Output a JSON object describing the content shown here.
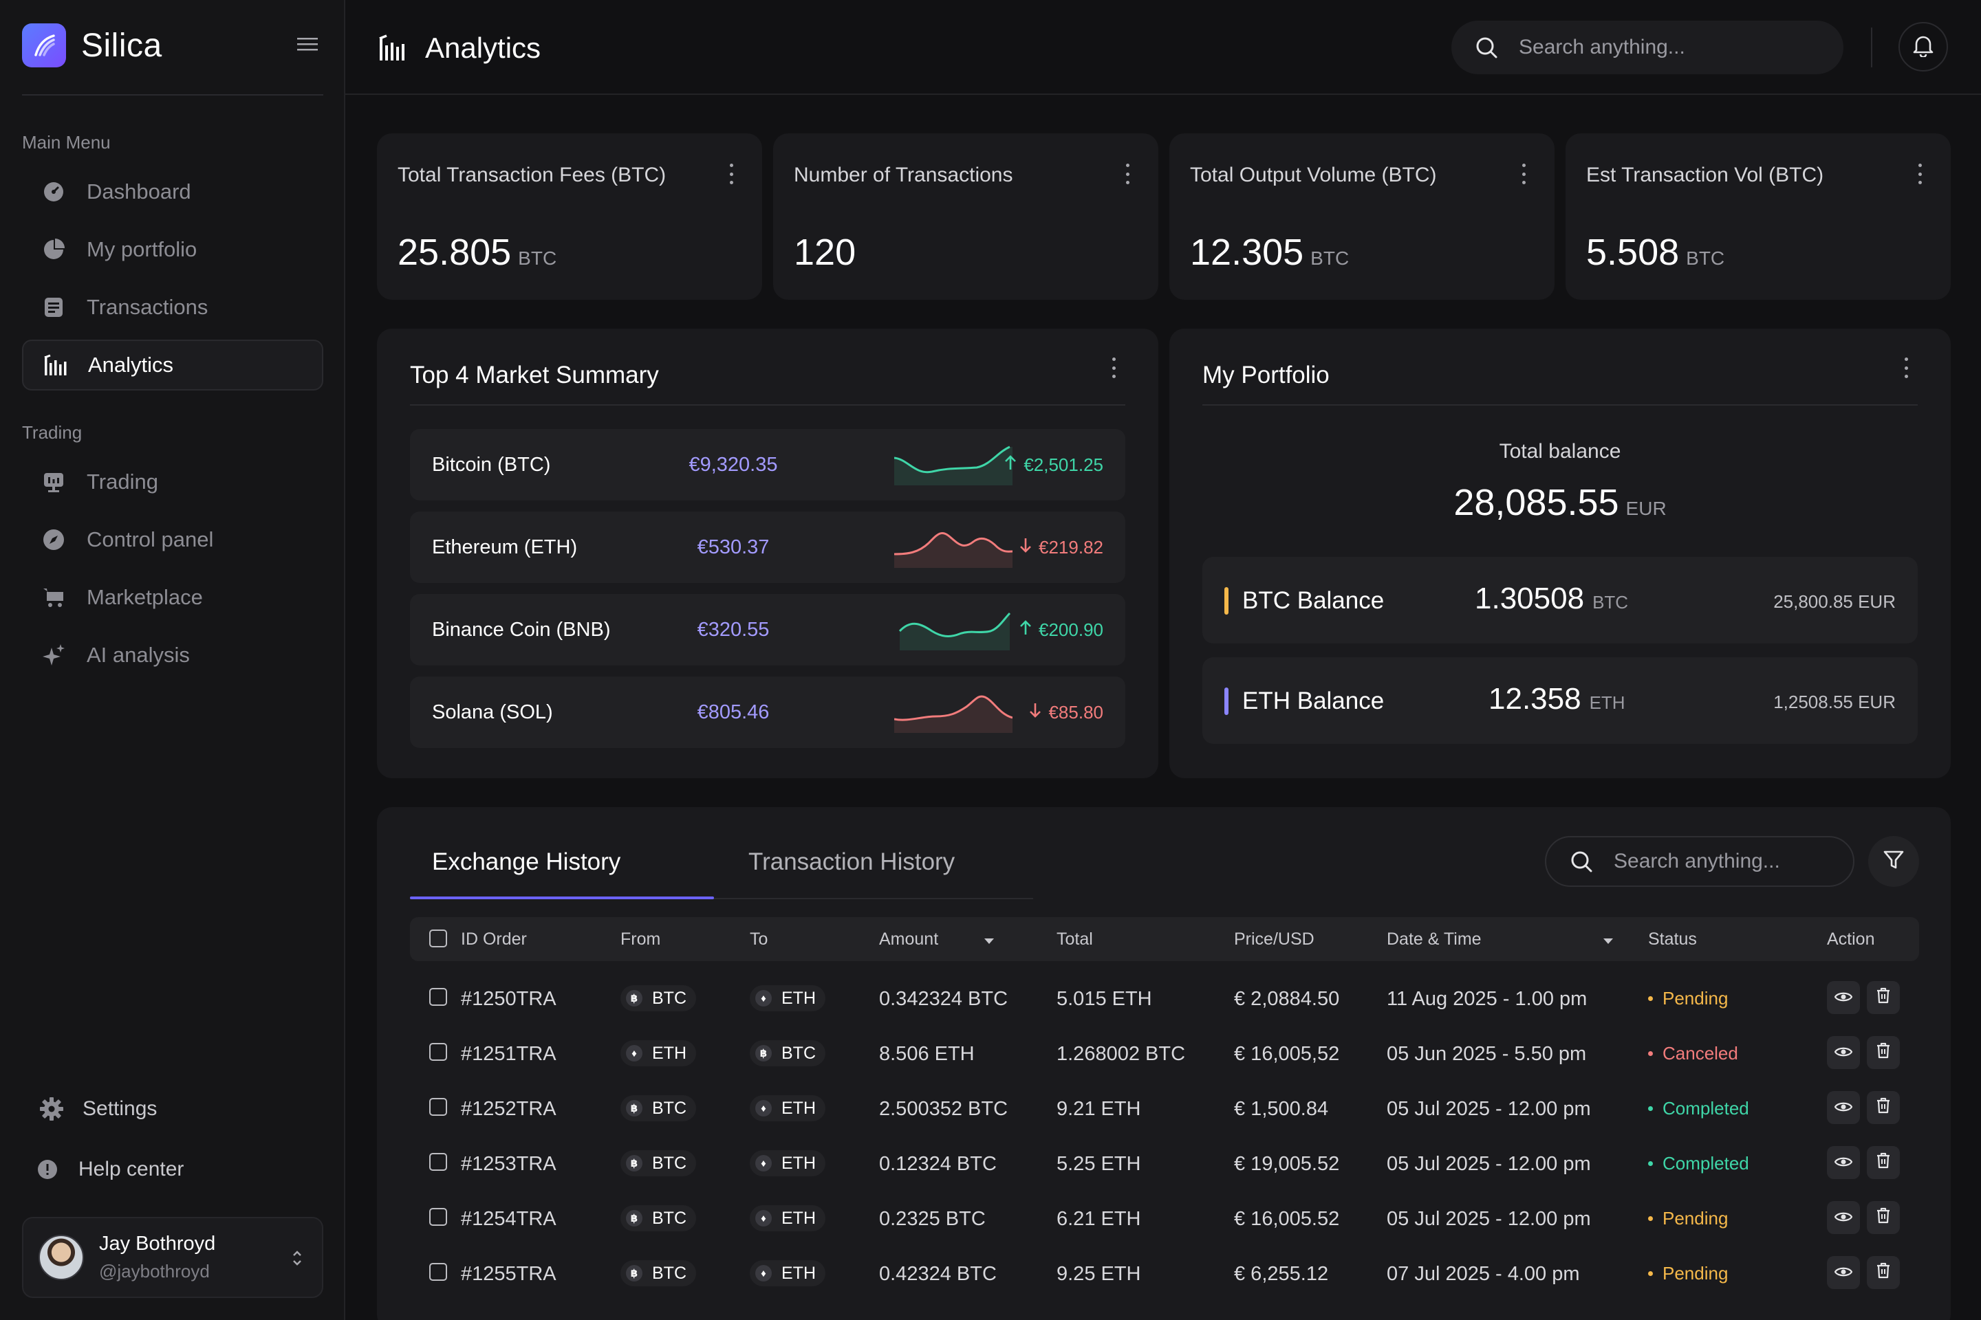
{
  "brand": {
    "name": "Silica"
  },
  "sidebar": {
    "main_menu_label": "Main Menu",
    "main_items": [
      {
        "label": "Dashboard",
        "icon": "dashboard-icon"
      },
      {
        "label": "My portfolio",
        "icon": "pie-chart-icon"
      },
      {
        "label": "Transactions",
        "icon": "receipt-icon"
      },
      {
        "label": "Analytics",
        "icon": "bar-chart-icon",
        "active": true
      }
    ],
    "trading_label": "Trading",
    "trading_items": [
      {
        "label": "Trading",
        "icon": "presentation-icon"
      },
      {
        "label": "Control panel",
        "icon": "compass-icon"
      },
      {
        "label": "Marketplace",
        "icon": "cart-icon"
      },
      {
        "label": "AI analysis",
        "icon": "sparkle-icon"
      }
    ],
    "settings_label": "Settings",
    "help_label": "Help center",
    "user": {
      "name": "Jay Bothroyd",
      "handle": "@jaybothroyd"
    }
  },
  "header": {
    "title": "Analytics",
    "search_placeholder": "Search anything..."
  },
  "stats": [
    {
      "title": "Total Transaction Fees (BTC)",
      "value": "25.805",
      "unit": "BTC"
    },
    {
      "title": "Number of Transactions",
      "value": "120",
      "unit": ""
    },
    {
      "title": "Total Output Volume (BTC)",
      "value": "12.305",
      "unit": "BTC"
    },
    {
      "title": "Est Transaction Vol (BTC)",
      "value": "5.508",
      "unit": "BTC"
    }
  ],
  "market": {
    "title": "Top 4 Market Summary",
    "rows": [
      {
        "name": "Bitcoin (BTC)",
        "price": "€9,320.35",
        "change": "€2,501.25",
        "direction": "up",
        "color": "#3fd6a8"
      },
      {
        "name": "Ethereum (ETH)",
        "price": "€530.37",
        "change": "€219.82",
        "direction": "down",
        "color": "#f27c7c"
      },
      {
        "name": "Binance Coin (BNB)",
        "price": "€320.55",
        "change": "€200.90",
        "direction": "up",
        "color": "#3fd6a8"
      },
      {
        "name": "Solana (SOL)",
        "price": "€805.46",
        "change": "€85.80",
        "direction": "down",
        "color": "#f27c7c"
      }
    ]
  },
  "portfolio": {
    "title": "My Portfolio",
    "total_label": "Total balance",
    "total_value": "28,085.55",
    "total_unit": "EUR",
    "balances": [
      {
        "name": "BTC Balance",
        "amount": "1.30508",
        "unit": "BTC",
        "eur": "25,800.85 EUR",
        "accent": "#f5b84a"
      },
      {
        "name": "ETH Balance",
        "amount": "12.358",
        "unit": "ETH",
        "eur": "1,2508.55 EUR",
        "accent": "#8b85ff"
      }
    ]
  },
  "history": {
    "tabs": [
      "Exchange History",
      "Transaction History"
    ],
    "search_placeholder": "Search anything...",
    "columns": [
      "ID Order",
      "From",
      "To",
      "Amount",
      "Total",
      "Price/USD",
      "Date & Time",
      "Status",
      "Action"
    ],
    "rows": [
      {
        "id": "#1250TRA",
        "from": "BTC",
        "to": "ETH",
        "amount": "0.342324 BTC",
        "total": "5.015 ETH",
        "price": "€ 2,0884.50",
        "date": "11 Aug 2025 - 1.00 pm",
        "status": "Pending"
      },
      {
        "id": "#1251TRA",
        "from": "ETH",
        "to": "BTC",
        "amount": "8.506 ETH",
        "total": "1.268002 BTC",
        "price": "€ 16,005,52",
        "date": "05 Jun 2025 - 5.50 pm",
        "status": "Canceled"
      },
      {
        "id": "#1252TRA",
        "from": "BTC",
        "to": "ETH",
        "amount": "2.500352 BTC",
        "total": "9.21 ETH",
        "price": "€ 1,500.84",
        "date": "05 Jul 2025 - 12.00 pm",
        "status": "Completed"
      },
      {
        "id": "#1253TRA",
        "from": "BTC",
        "to": "ETH",
        "amount": "0.12324 BTC",
        "total": "5.25 ETH",
        "price": "€ 19,005.52",
        "date": "05 Jul 2025 - 12.00 pm",
        "status": "Completed"
      },
      {
        "id": "#1254TRA",
        "from": "BTC",
        "to": "ETH",
        "amount": "0.2325 BTC",
        "total": "6.21 ETH",
        "price": "€ 16,005.52",
        "date": "05 Jul 2025 - 12.00 pm",
        "status": "Pending"
      },
      {
        "id": "#1255TRA",
        "from": "BTC",
        "to": "ETH",
        "amount": "0.42324 BTC",
        "total": "9.25 ETH",
        "price": "€ 6,255.12",
        "date": "07 Jul 2025 - 4.00 pm",
        "status": "Pending"
      }
    ],
    "status_colors": {
      "Pending": "#f5b84a",
      "Canceled": "#f27c7c",
      "Completed": "#3fd6a8"
    }
  }
}
